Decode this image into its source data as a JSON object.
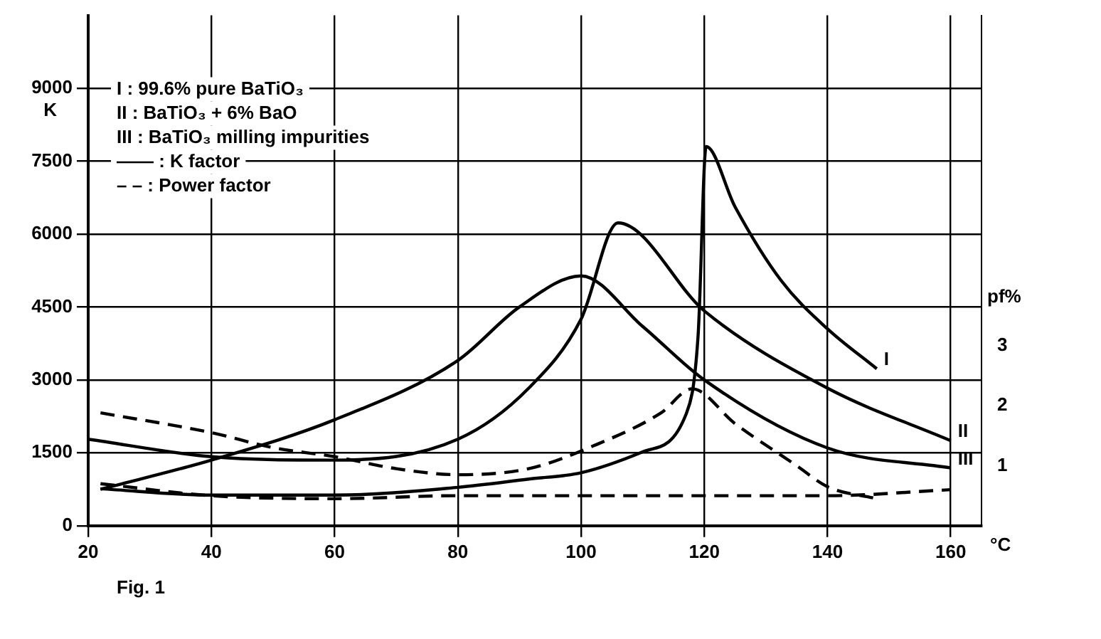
{
  "chart_data": {
    "type": "line",
    "xlabel": "°C",
    "ylabel": "K",
    "y2label": "pf%",
    "xlim": [
      20,
      165
    ],
    "xticks": [
      20,
      40,
      60,
      80,
      100,
      120,
      140,
      160
    ],
    "ylim": [
      0,
      10500
    ],
    "yticks": [
      0,
      1500,
      3000,
      4500,
      6000,
      7500,
      9000
    ],
    "y2lim": [
      0,
      8.5
    ],
    "y2ticks": [
      1,
      2,
      3
    ],
    "grid": true,
    "legend": false,
    "marker": "none",
    "annotations": [
      "I : 99.6% pure BaTiO₃",
      "II : BaTiO₃ + 6% BaO",
      "III : BaTiO₃ milling impurities",
      "—— : K factor",
      "– – : Power factor",
      "Fig. 1"
    ],
    "series": [
      {
        "name": "I",
        "color": "#000000",
        "line_style": "solid",
        "x": [
          22,
          40,
          60,
          80,
          91.5,
          100,
          110,
          117,
          119,
          120.3,
          125,
          132.5,
          140,
          148
        ],
        "values": [
          760,
          630,
          630,
          790,
          960,
          1090,
          1520,
          2280,
          3920,
          7800,
          6560,
          5040,
          4050,
          3230
        ]
      },
      {
        "name": "II",
        "color": "#000000",
        "line_style": "solid",
        "x": [
          20,
          40,
          60,
          80,
          91.5,
          100,
          106,
          120,
          140,
          160
        ],
        "values": [
          1780,
          1420,
          1350,
          1780,
          2830,
          4250,
          6230,
          4420,
          2830,
          1750
        ]
      },
      {
        "name": "III",
        "color": "#000000",
        "line_style": "solid",
        "x": [
          22,
          40,
          60,
          80,
          90,
          100,
          110,
          120,
          140,
          160
        ],
        "values": [
          750,
          1350,
          2180,
          3400,
          4500,
          5140,
          4100,
          3000,
          1600,
          1190
        ]
      },
      {
        "color": "#000000",
        "line_style": "dashed",
        "axis": "y2",
        "x": [
          22,
          40,
          50,
          60,
          70,
          80,
          91.5,
          102,
          113,
          118,
          125,
          135,
          140,
          148
        ],
        "values": [
          1.88,
          1.55,
          1.3,
          1.15,
          0.95,
          0.85,
          0.95,
          1.33,
          1.88,
          2.28,
          1.7,
          1.0,
          0.65,
          0.45
        ]
      },
      {
        "color": "#000000",
        "line_style": "dashed",
        "axis": "y2",
        "x": [
          22,
          40,
          60,
          80,
          100,
          120,
          140,
          160
        ],
        "values": [
          0.7,
          0.5,
          0.45,
          0.5,
          0.5,
          0.5,
          0.5,
          0.6
        ]
      }
    ]
  }
}
